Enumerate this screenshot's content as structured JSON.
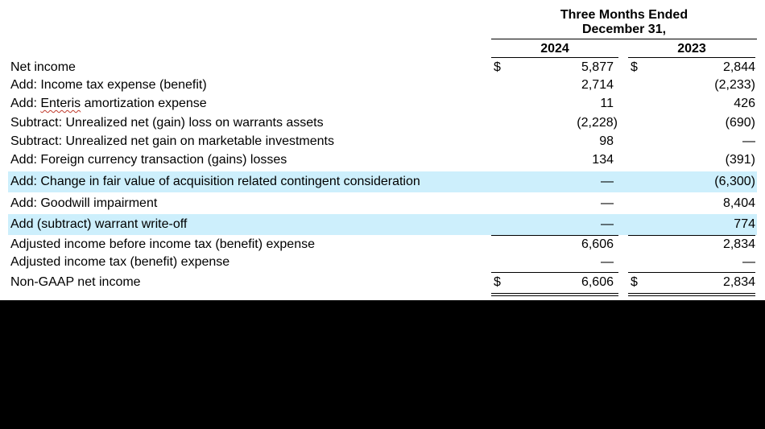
{
  "header": {
    "period_line1": "Three Months Ended",
    "period_line2": "December 31,",
    "col_2024": "2024",
    "col_2023": "2023"
  },
  "rows": [
    {
      "label": "Net income",
      "currency": "$",
      "v2024": "5,877",
      "v2023": "2,844",
      "shaded": true
    },
    {
      "label": "Add: Income tax expense (benefit)",
      "v2024": "2,714",
      "v2023": "(2,233)",
      "shaded": false
    },
    {
      "label_prefix": "Add: ",
      "label_word": "Enteris",
      "label_suffix": " amortization expense",
      "v2024": "11",
      "v2023": "426",
      "shaded": true
    },
    {
      "label": "Subtract: Unrealized net (gain) loss on warrants assets",
      "v2024": "(2,228)",
      "v2023": "(690)",
      "shaded": false
    },
    {
      "label": "Subtract: Unrealized net gain on marketable investments",
      "v2024": "98",
      "v2023": "—",
      "shaded": true
    },
    {
      "label": "Add: Foreign currency transaction (gains) losses",
      "v2024": "134",
      "v2023": "(391)",
      "shaded": false
    },
    {
      "label": "Add: Change in fair value of acquisition related contingent consideration",
      "v2024": "—",
      "v2023": "(6,300)",
      "shaded": true
    },
    {
      "label": "Add: Goodwill impairment",
      "v2024": "—",
      "v2023": "8,404",
      "shaded": false
    },
    {
      "label": "Add (subtract) warrant write-off",
      "v2024": "—",
      "v2023": "774",
      "shaded": true
    },
    {
      "label": "Adjusted income before income tax (benefit) expense",
      "v2024": "6,606",
      "v2023": "2,834",
      "shaded": false
    },
    {
      "label": "Adjusted income tax (benefit) expense",
      "v2024": "—",
      "v2023": "—",
      "shaded": true
    },
    {
      "label": "Non-GAAP net income",
      "currency": "$",
      "v2024": "6,606",
      "v2023": "2,834",
      "shaded": false
    }
  ],
  "colors": {
    "row_shade": "#cdeffc",
    "page_bg": "#ffffff",
    "outer_bg": "#000000"
  }
}
